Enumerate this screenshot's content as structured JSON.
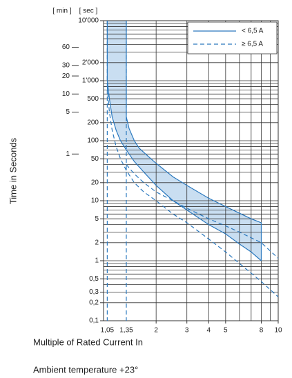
{
  "chart_data": {
    "type": "line",
    "y_axis_label": "Time in Seconds",
    "x_axis_label": "Multiple of Rated Current In",
    "note": "Ambient temperature +23°",
    "unit_min": "[ min ]",
    "unit_sec": "[ sec ]",
    "xscale": "log",
    "yscale": "log",
    "xlim": [
      1,
      10
    ],
    "ylim": [
      0.1,
      10000
    ],
    "xticks": [
      {
        "value": 1.05,
        "label": "1,05"
      },
      {
        "value": 1.35,
        "label": "1,35"
      },
      2,
      3,
      4,
      5,
      8,
      10
    ],
    "yticks": [
      {
        "value": 0.1,
        "label": "0,1"
      },
      {
        "value": 0.2,
        "label": "0,2"
      },
      {
        "value": 0.3,
        "label": "0,3"
      },
      {
        "value": 0.5,
        "label": "0,5"
      },
      1,
      2,
      5,
      10,
      20,
      50,
      100,
      200,
      500,
      {
        "value": 1000,
        "label": "1'000"
      },
      {
        "value": 2000,
        "label": "2'000"
      },
      {
        "value": 10000,
        "label": "10'000"
      }
    ],
    "y_minute_ticks": [
      {
        "value": 3600,
        "label": "60"
      },
      {
        "value": 1800,
        "label": "30"
      },
      {
        "value": 1200,
        "label": "20"
      },
      {
        "value": 600,
        "label": "10"
      },
      {
        "value": 300,
        "label": "5"
      },
      {
        "value": 60,
        "label": "1"
      }
    ],
    "xgrid": [
      2,
      3,
      4,
      5,
      6,
      7,
      8,
      9
    ],
    "ygrid": [
      0.2,
      0.3,
      0.4,
      0.5,
      0.6,
      0.7,
      0.8,
      0.9,
      1,
      2,
      3,
      4,
      5,
      6,
      7,
      8,
      9,
      10,
      20,
      30,
      40,
      50,
      60,
      70,
      80,
      90,
      100,
      200,
      300,
      400,
      500,
      600,
      700,
      800,
      900,
      1000,
      2000,
      3000,
      4000,
      5000,
      6000,
      7000,
      8000,
      9000
    ],
    "grid": true,
    "legend": "upper right",
    "series": [
      {
        "name": "< 6,5 A",
        "color": "#2a78be",
        "dashed": false,
        "fill": "#c9def1",
        "curves": [
          {
            "x": [
              1.05,
              1.05,
              1.08,
              1.12,
              1.18,
              1.25,
              1.35,
              1.5,
              1.7,
              2,
              2.5,
              3,
              4,
              5,
              6,
              7,
              8
            ],
            "values": [
              10000,
              1000,
              500,
              250,
              150,
              100,
              70,
              45,
              30,
              18,
              10,
              7,
              4,
              2.8,
              1.9,
              1.4,
              1
            ]
          },
          {
            "x": [
              1.35,
              1.35,
              1.4,
              1.5,
              1.6,
              1.8,
              2,
              2.5,
              3,
              4,
              5,
              6,
              7,
              8
            ],
            "values": [
              10000,
              250,
              160,
              100,
              75,
              55,
              42,
              25,
              18,
              11,
              8,
              6.2,
              5,
              4.3
            ]
          }
        ]
      },
      {
        "name": "≥ 6,5 A",
        "color": "#2a78be",
        "dashed": true,
        "curves": [
          {
            "x": [
              1.05,
              1.08,
              1.12,
              1.18,
              1.25,
              1.35,
              1.5,
              1.7,
              2,
              2.5,
              3,
              4,
              5,
              6,
              8,
              10
            ],
            "values": [
              800,
              300,
              150,
              80,
              50,
              32,
              20,
              14,
              10,
              6,
              4.3,
              2.3,
              1.4,
              0.9,
              0.45,
              0.25
            ]
          },
          {
            "x": [
              1.35,
              1.5,
              1.7,
              2,
              2.5,
              3,
              4,
              5,
              6,
              8,
              10
            ],
            "values": [
              40,
              28,
              20,
              14,
              10,
              7.5,
              5,
              3.8,
              3,
              2,
              1.1
            ]
          }
        ]
      }
    ]
  }
}
